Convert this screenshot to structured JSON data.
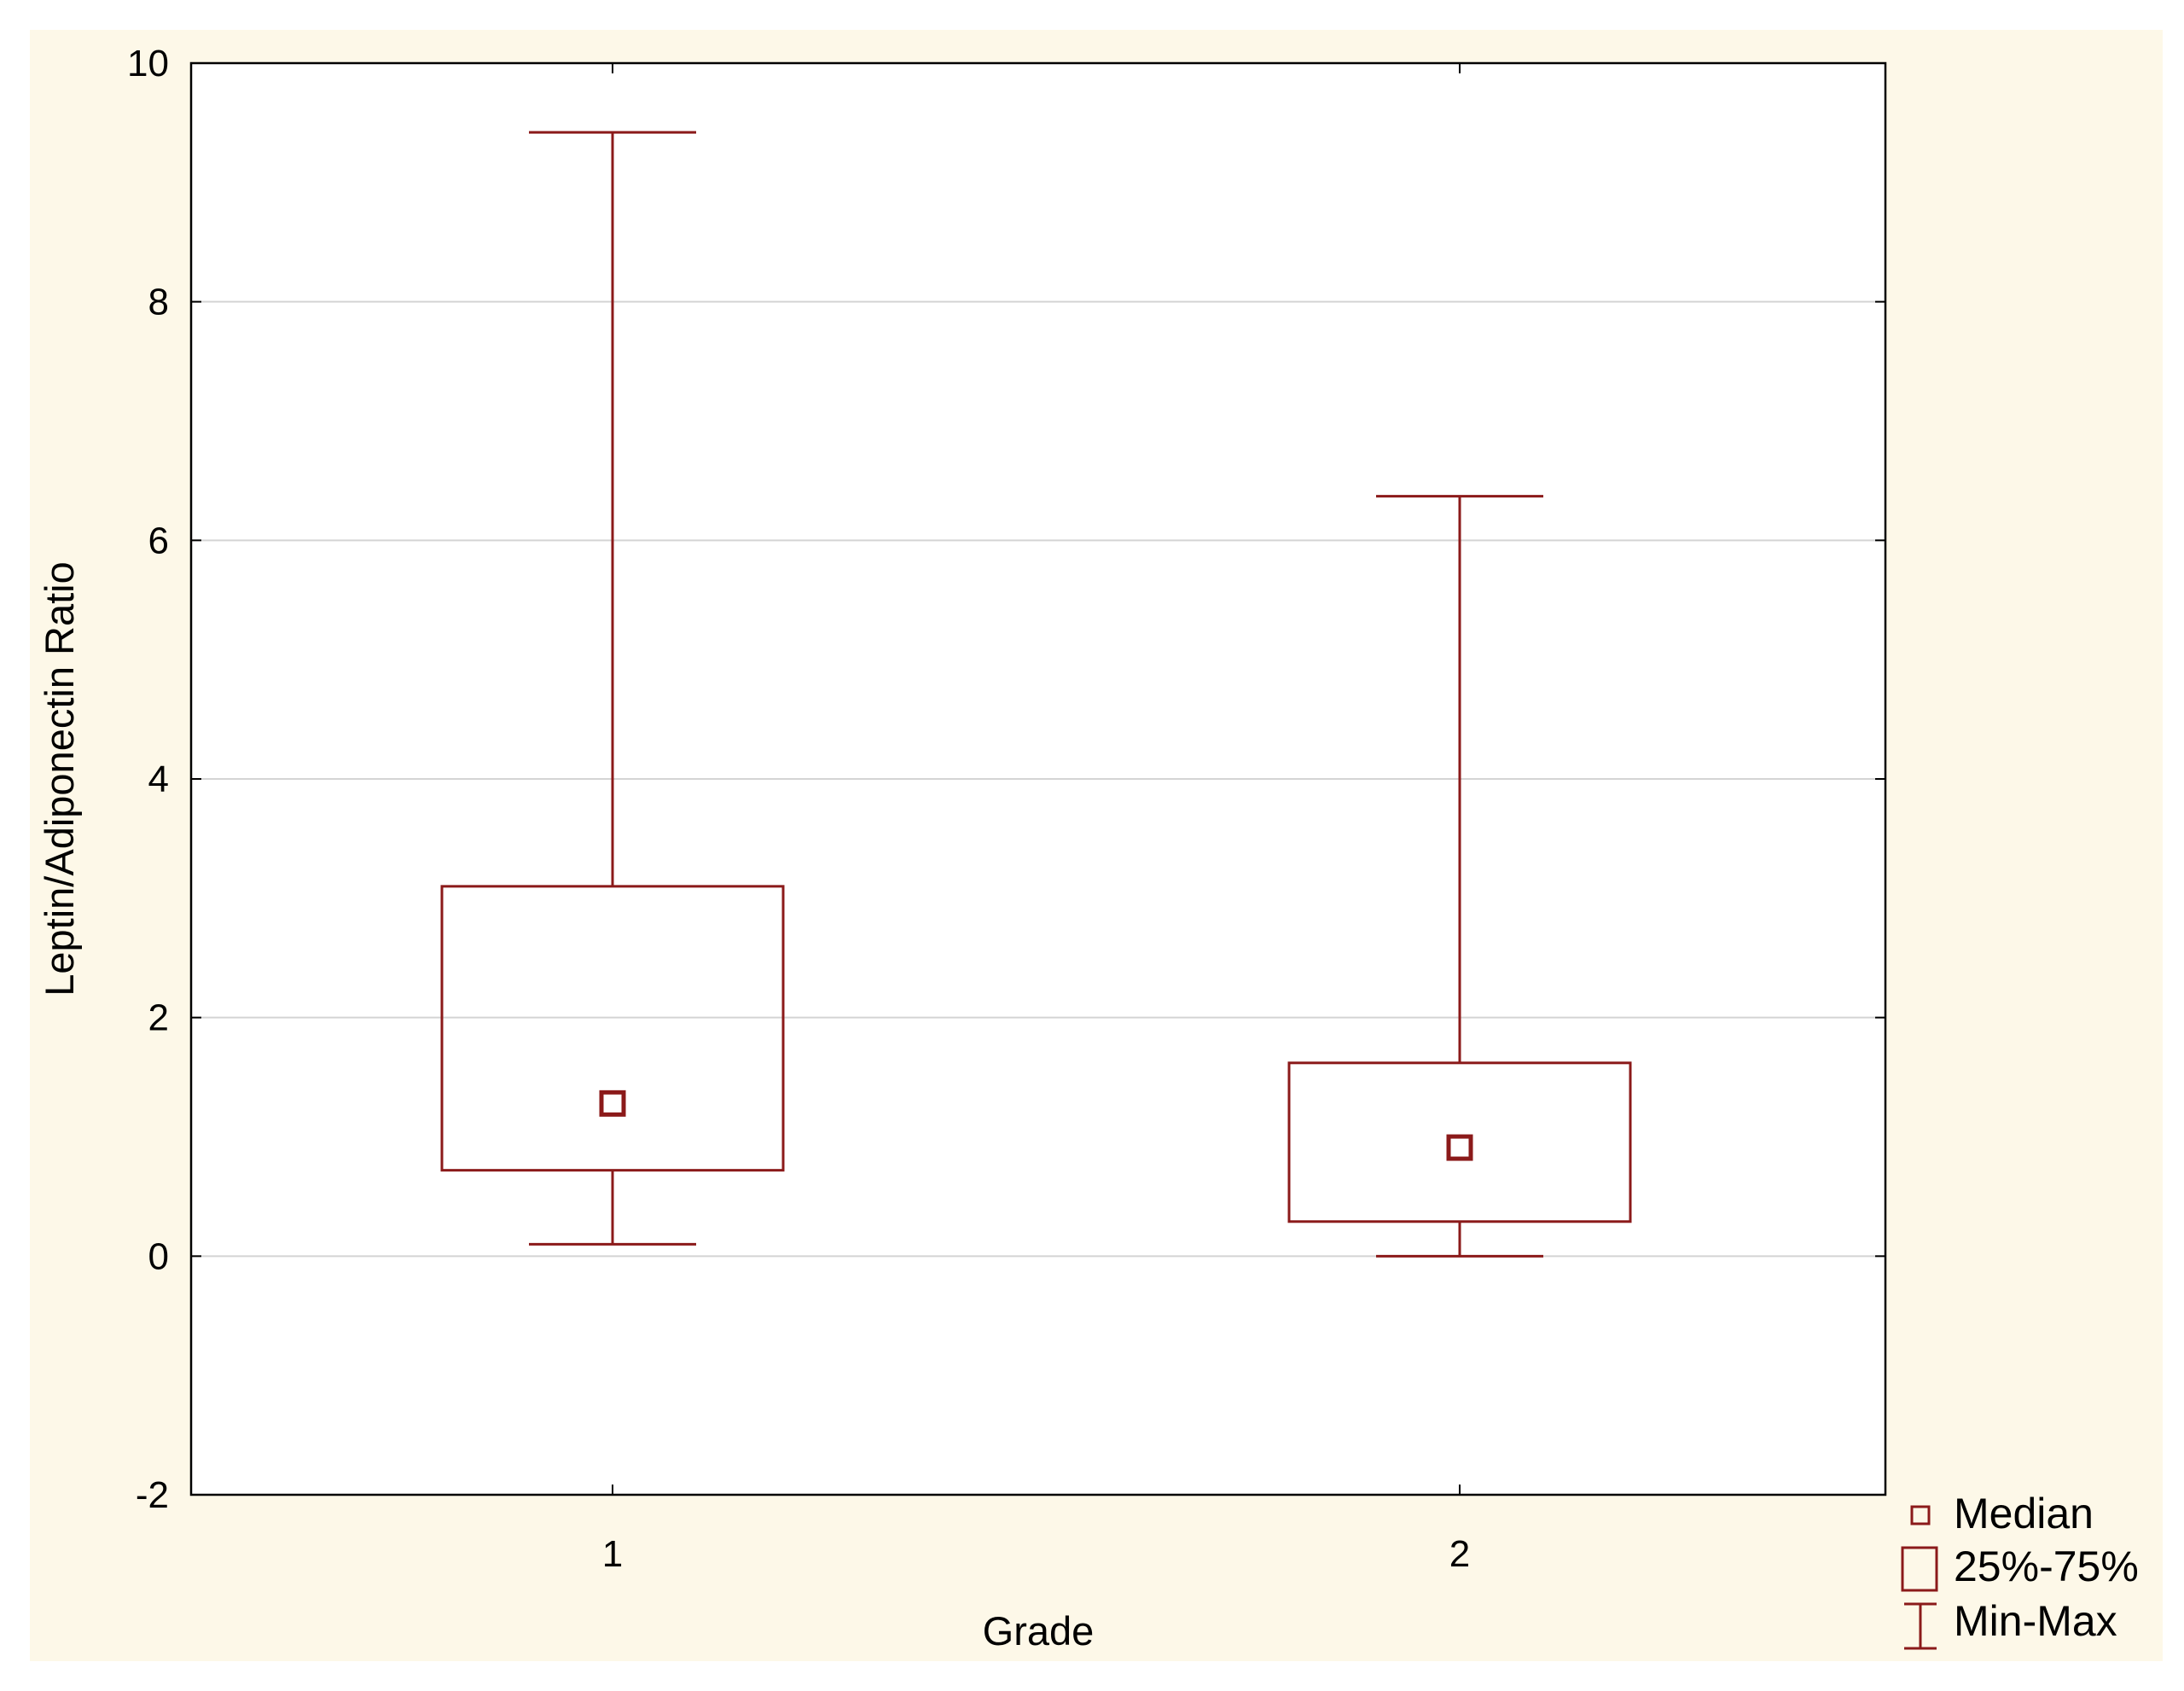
{
  "chart_data": {
    "type": "boxplot",
    "xlabel": "Grade",
    "ylabel": "Leptin/Adiponectin Ratio",
    "ylim": [
      -2,
      10
    ],
    "y_ticks": [
      "-2",
      "0",
      "2",
      "4",
      "6",
      "8",
      "10"
    ],
    "categories": [
      "1",
      "2"
    ],
    "grid": "horizontal",
    "boxes": [
      {
        "category": "1",
        "min": 0.1,
        "q1": 0.72,
        "median": 1.28,
        "q3": 3.1,
        "max": 9.42
      },
      {
        "category": "2",
        "min": 0.0,
        "q1": 0.29,
        "median": 0.91,
        "q3": 1.62,
        "max": 6.37
      }
    ],
    "legend": {
      "position": "bottom-right",
      "median_label": "Median",
      "box_label": "25%-75%",
      "whisker_label": "Min-Max"
    },
    "colors": {
      "series": "#8b1a1a",
      "background": "#fdf8e8",
      "plot_background": "#ffffff",
      "grid": "#d4d4d4"
    }
  }
}
